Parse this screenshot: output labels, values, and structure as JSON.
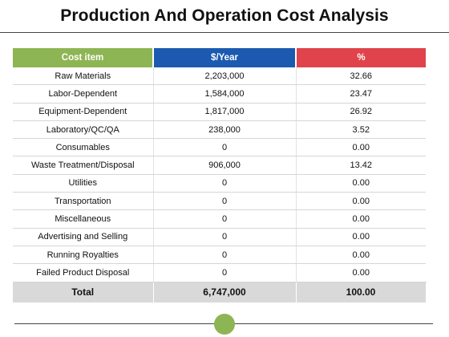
{
  "title": "Production And Operation Cost Analysis",
  "colors": {
    "header_col1": "#8DB553",
    "header_col2": "#1B5AB0",
    "header_col3": "#E0434B",
    "total_row": "#D9D9D9",
    "dot": "#8DB553"
  },
  "table": {
    "headers": [
      "Cost item",
      "$/Year",
      "%"
    ],
    "rows": [
      [
        "Raw Materials",
        "2,203,000",
        "32.66"
      ],
      [
        "Labor-Dependent",
        "1,584,000",
        "23.47"
      ],
      [
        "Equipment-Dependent",
        "1,817,000",
        "26.92"
      ],
      [
        "Laboratory/QC/QA",
        "238,000",
        "3.52"
      ],
      [
        "Consumables",
        "0",
        "0.00"
      ],
      [
        "Waste Treatment/Disposal",
        "906,000",
        "13.42"
      ],
      [
        "Utilities",
        "0",
        "0.00"
      ],
      [
        "Transportation",
        "0",
        "0.00"
      ],
      [
        "Miscellaneous",
        "0",
        "0.00"
      ],
      [
        "Advertising and Selling",
        "0",
        "0.00"
      ],
      [
        "Running Royalties",
        "0",
        "0.00"
      ],
      [
        "Failed Product Disposal",
        "0",
        "0.00"
      ]
    ],
    "total": [
      "Total",
      "6,747,000",
      "100.00"
    ]
  }
}
